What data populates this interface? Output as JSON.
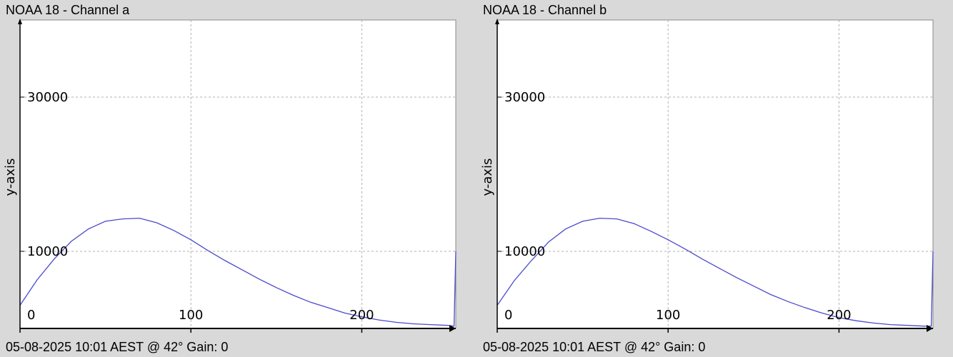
{
  "chart_data": [
    {
      "type": "line",
      "title": "NOAA 18 - Channel a",
      "footer": "05-08-2025 10:01 AEST @ 42° Gain: 0",
      "ylabel": "y-axis",
      "xlabel": "",
      "xlim": [
        0,
        255
      ],
      "ylim": [
        0,
        40000
      ],
      "grid": true,
      "xticks": [
        "0",
        "100",
        "200"
      ],
      "yticks": [
        "10000",
        "30000"
      ],
      "colors": {
        "line": "#4a4acc",
        "grid": "#b0b0b0",
        "axis": "#000000"
      },
      "series": [
        {
          "x": [
            0,
            10,
            20,
            30,
            40,
            50,
            60,
            70,
            80,
            90,
            100,
            110,
            120,
            130,
            140,
            150,
            160,
            170,
            180,
            190,
            200,
            210,
            220,
            230,
            240,
            250,
            254,
            255
          ],
          "y": [
            3000,
            6300,
            9000,
            11300,
            12900,
            13900,
            14200,
            14300,
            13700,
            12700,
            11500,
            10100,
            8800,
            7600,
            6400,
            5300,
            4300,
            3400,
            2700,
            2000,
            1500,
            1100,
            800,
            600,
            500,
            400,
            300,
            10000
          ]
        }
      ]
    },
    {
      "type": "line",
      "title": "NOAA 18 - Channel b",
      "footer": "05-08-2025 10:01 AEST @ 42° Gain: 0",
      "ylabel": "y-axis",
      "xlabel": "",
      "xlim": [
        0,
        255
      ],
      "ylim": [
        0,
        40000
      ],
      "grid": true,
      "xticks": [
        "0",
        "100",
        "200"
      ],
      "yticks": [
        "10000",
        "30000"
      ],
      "colors": {
        "line": "#4a4acc",
        "grid": "#b0b0b0",
        "axis": "#000000"
      },
      "series": [
        {
          "x": [
            0,
            10,
            20,
            30,
            40,
            50,
            60,
            70,
            80,
            90,
            100,
            110,
            120,
            130,
            140,
            150,
            160,
            170,
            180,
            190,
            200,
            210,
            220,
            230,
            240,
            250,
            254,
            255
          ],
          "y": [
            3000,
            6200,
            8800,
            11200,
            12900,
            13900,
            14300,
            14200,
            13600,
            12600,
            11500,
            10300,
            9000,
            7800,
            6600,
            5500,
            4400,
            3500,
            2700,
            2000,
            1400,
            1000,
            700,
            500,
            400,
            300,
            300,
            10000
          ]
        }
      ]
    }
  ]
}
